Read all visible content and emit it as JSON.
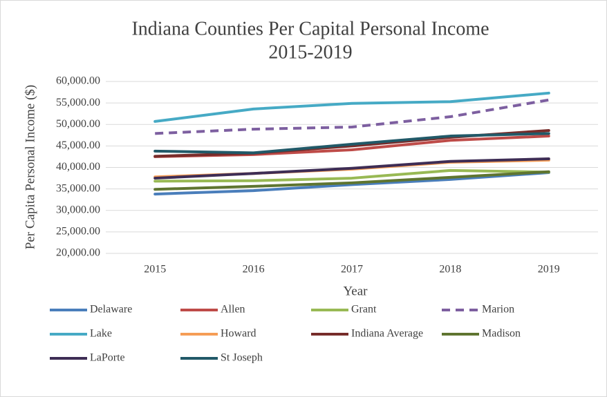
{
  "chart_data": {
    "type": "line",
    "title": "Indiana Counties Per Capital Personal Income",
    "subtitle": "2015-2019",
    "x_label": "Year",
    "y_label": "Per Capita Personal Income ($)",
    "categories": [
      "2015",
      "2016",
      "2017",
      "2018",
      "2019"
    ],
    "ylim": [
      20000,
      60000
    ],
    "yticks": [
      {
        "value": 20000,
        "label": "20,000.00"
      },
      {
        "value": 25000,
        "label": "25,000.00"
      },
      {
        "value": 30000,
        "label": "30,000.00"
      },
      {
        "value": 35000,
        "label": "35,000.00"
      },
      {
        "value": 40000,
        "label": "40,000.00"
      },
      {
        "value": 45000,
        "label": "45,000.00"
      },
      {
        "value": 50000,
        "label": "50,000.00"
      },
      {
        "value": 55000,
        "label": "55,000.00"
      },
      {
        "value": 60000,
        "label": "60,000.00"
      }
    ],
    "grid": true,
    "legend": "bottom",
    "series": [
      {
        "name": "Delaware",
        "color": "#4a7ebb",
        "values": [
          33800,
          34600,
          36000,
          37200,
          38800
        ]
      },
      {
        "name": "Allen",
        "color": "#be4b48",
        "values": [
          42500,
          43000,
          44100,
          46300,
          47300
        ]
      },
      {
        "name": "Grant",
        "color": "#98b954",
        "values": [
          36800,
          36900,
          37500,
          39300,
          38900
        ]
      },
      {
        "name": "Marion",
        "color": "#7d5fa0",
        "dashed": true,
        "values": [
          47900,
          48900,
          49400,
          51800,
          55700
        ]
      },
      {
        "name": "Lake",
        "color": "#46aac5",
        "values": [
          50700,
          53600,
          54900,
          55300,
          57300
        ]
      },
      {
        "name": "Howard",
        "color": "#f59d56",
        "values": [
          37800,
          38600,
          39600,
          41200,
          41700
        ]
      },
      {
        "name": "Indiana Average",
        "color": "#772c2a",
        "values": [
          42600,
          43300,
          45000,
          47000,
          48600
        ]
      },
      {
        "name": "Madison",
        "color": "#5f7530",
        "values": [
          34900,
          35600,
          36400,
          37700,
          39000
        ]
      },
      {
        "name": "LaPorte",
        "color": "#3e2d55",
        "values": [
          37500,
          38600,
          39800,
          41400,
          42000
        ]
      },
      {
        "name": "St Joseph",
        "color": "#215968",
        "values": [
          43800,
          43400,
          45400,
          47300,
          47900
        ]
      }
    ]
  }
}
